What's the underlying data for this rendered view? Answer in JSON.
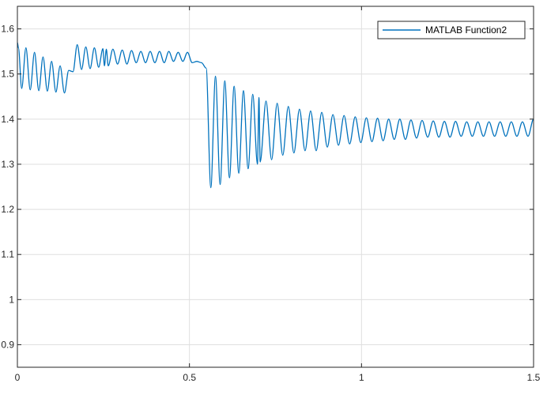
{
  "chart_data": {
    "type": "line",
    "title": "",
    "xlabel": "",
    "ylabel": "",
    "xlim": [
      0,
      1.5
    ],
    "ylim": [
      0.85,
      1.65
    ],
    "grid": true,
    "legend_placement": "top-right",
    "x_ticks": [
      {
        "value": 0,
        "label": "0"
      },
      {
        "value": 0.5,
        "label": "0.5"
      },
      {
        "value": 1,
        "label": "1"
      },
      {
        "value": 1.5,
        "label": "1.5"
      }
    ],
    "y_ticks": [
      {
        "value": 0.9,
        "label": "0.9"
      },
      {
        "value": 1.0,
        "label": "1"
      },
      {
        "value": 1.1,
        "label": "1.1"
      },
      {
        "value": 1.2,
        "label": "1.2"
      },
      {
        "value": 1.3,
        "label": "1.3"
      },
      {
        "value": 1.4,
        "label": "1.4"
      },
      {
        "value": 1.5,
        "label": "1.5"
      },
      {
        "value": 1.6,
        "label": "1.6"
      }
    ],
    "series": [
      {
        "name": "MATLAB Function2",
        "color": "#0072BD",
        "x": [
          0,
          0.003,
          0.0125,
          0.0248,
          0.0373,
          0.0497,
          0.0622,
          0.0745,
          0.087,
          0.0994,
          0.1119,
          0.1242,
          0.1367,
          0.1491,
          0.1616,
          0.1739,
          0.1864,
          0.1988,
          0.2113,
          0.2237,
          0.2361,
          0.2485,
          0.2529,
          0.2585,
          0.264,
          0.2775,
          0.2911,
          0.3046,
          0.3182,
          0.3317,
          0.3453,
          0.3588,
          0.3724,
          0.3859,
          0.3995,
          0.413,
          0.4266,
          0.4401,
          0.4537,
          0.4672,
          0.4808,
          0.4943,
          0.5079,
          0.5214,
          0.535,
          0.5485,
          0.5621,
          0.5756,
          0.5892,
          0.6027,
          0.6163,
          0.6298,
          0.6434,
          0.6569,
          0.6705,
          0.684,
          0.6976,
          0.702,
          0.7055,
          0.7225,
          0.7387,
          0.7549,
          0.7711,
          0.7873,
          0.8035,
          0.8197,
          0.8359,
          0.8521,
          0.8683,
          0.8845,
          0.9007,
          0.9169,
          0.9331,
          0.9493,
          0.9655,
          0.9817,
          0.9979,
          1.0141,
          1.0303,
          1.0465,
          1.0627,
          1.0789,
          1.0951,
          1.1113,
          1.1275,
          1.1437,
          1.1599,
          1.1761,
          1.1923,
          1.2085,
          1.2247,
          1.2409,
          1.2571,
          1.2733,
          1.2895,
          1.3057,
          1.3219,
          1.3381,
          1.3543,
          1.3705,
          1.3867,
          1.4029,
          1.4191,
          1.4353,
          1.4515,
          1.4677,
          1.4839,
          1.5
        ],
        "y": [
          1.57,
          1.558,
          1.468,
          1.558,
          1.465,
          1.548,
          1.463,
          1.538,
          1.462,
          1.528,
          1.46,
          1.518,
          1.458,
          1.508,
          1.505,
          1.565,
          1.51,
          1.56,
          1.512,
          1.558,
          1.515,
          1.556,
          1.518,
          1.555,
          1.518,
          1.555,
          1.522,
          1.553,
          1.522,
          1.552,
          1.525,
          1.55,
          1.525,
          1.55,
          1.525,
          1.55,
          1.525,
          1.55,
          1.528,
          1.548,
          1.528,
          1.548,
          1.525,
          1.528,
          1.525,
          1.513,
          1.248,
          1.495,
          1.255,
          1.485,
          1.27,
          1.473,
          1.28,
          1.463,
          1.29,
          1.455,
          1.3,
          1.448,
          1.305,
          1.44,
          1.31,
          1.435,
          1.32,
          1.428,
          1.325,
          1.422,
          1.33,
          1.418,
          1.33,
          1.415,
          1.338,
          1.41,
          1.342,
          1.408,
          1.345,
          1.405,
          1.348,
          1.403,
          1.35,
          1.402,
          1.352,
          1.4,
          1.355,
          1.4,
          1.355,
          1.398,
          1.358,
          1.397,
          1.36,
          1.396,
          1.36,
          1.395,
          1.36,
          1.395,
          1.362,
          1.394,
          1.362,
          1.394,
          1.362,
          1.394,
          1.362,
          1.394,
          1.362,
          1.394,
          1.362,
          1.394,
          1.362,
          1.4
        ]
      }
    ]
  }
}
